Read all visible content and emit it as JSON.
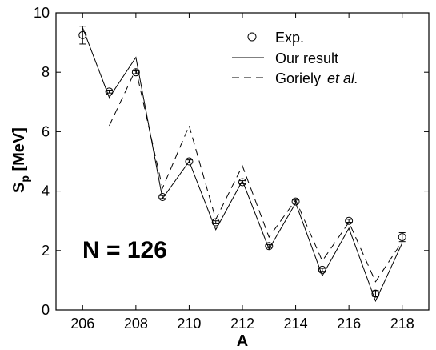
{
  "chart_data": {
    "type": "line",
    "xlabel": "A",
    "ylabel": {
      "main": "S",
      "sub": "p",
      "unit": " [MeV]"
    },
    "xlim": [
      205,
      219
    ],
    "ylim": [
      0,
      10
    ],
    "xticks": [
      206,
      208,
      210,
      212,
      214,
      216,
      218
    ],
    "yticks": [
      0,
      2,
      4,
      6,
      8,
      10
    ],
    "grid": false,
    "legend_position": "top-right",
    "annotation": "N = 126",
    "series": [
      {
        "name": "Exp.",
        "style": "circle-markers-errorbars",
        "x": [
          206,
          207,
          208,
          209,
          210,
          211,
          212,
          213,
          214,
          215,
          216,
          217,
          218
        ],
        "y": [
          9.25,
          7.35,
          8.0,
          3.8,
          5.0,
          2.95,
          4.3,
          2.15,
          3.65,
          1.35,
          3.0,
          0.55,
          2.45
        ],
        "err": [
          0.3,
          0.05,
          0.05,
          0.05,
          0.05,
          0.05,
          0.05,
          0.05,
          0.05,
          0.05,
          0.05,
          0.1,
          0.15
        ]
      },
      {
        "name": "Our result",
        "style": "solid",
        "x": [
          206,
          207,
          208,
          209,
          210,
          211,
          212,
          213,
          214,
          215,
          216,
          217,
          218
        ],
        "y": [
          9.5,
          7.15,
          8.5,
          3.75,
          5.0,
          2.7,
          4.35,
          2.05,
          3.6,
          1.15,
          2.75,
          0.3,
          2.25
        ]
      },
      {
        "name": "Goriely",
        "name_suffix": "et al.",
        "style": "dashed",
        "x": [
          207,
          208,
          209,
          210,
          211,
          212,
          213,
          214,
          215,
          216,
          217,
          218
        ],
        "y": [
          6.2,
          8.1,
          4.1,
          6.2,
          3.05,
          4.85,
          2.45,
          3.7,
          1.65,
          2.95,
          0.95,
          2.3
        ]
      }
    ]
  }
}
